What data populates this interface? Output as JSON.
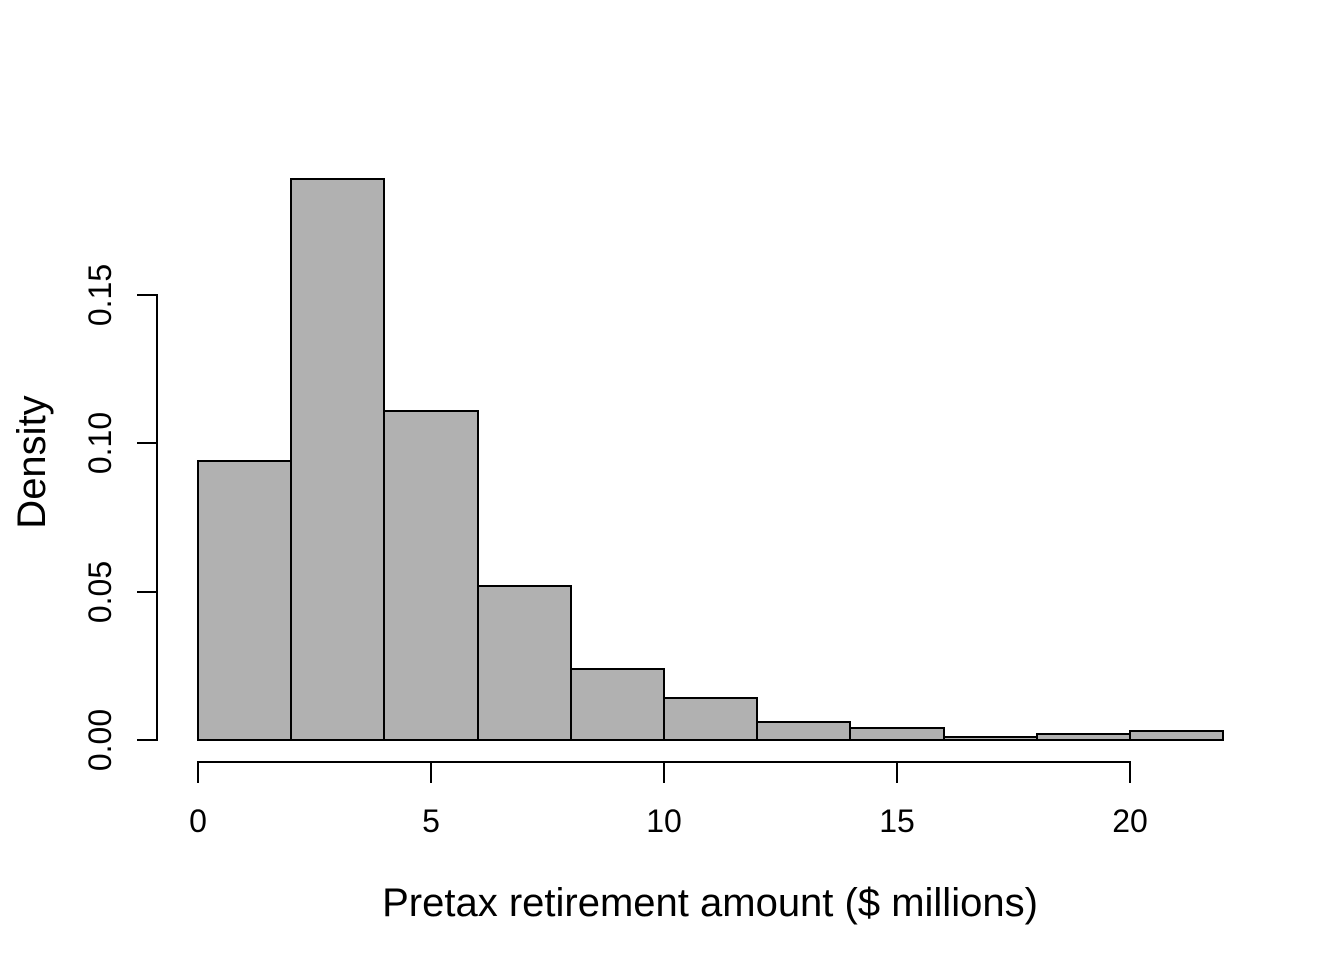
{
  "chart_data": {
    "type": "bar",
    "subtype": "histogram",
    "title": "",
    "xlabel": "Pretax retirement amount ($ millions)",
    "ylabel": "Density",
    "bin_width": 2,
    "bin_edges": [
      0,
      2,
      4,
      6,
      8,
      10,
      12,
      14,
      16,
      18,
      20,
      22
    ],
    "categories": [
      "0-2",
      "2-4",
      "4-6",
      "6-8",
      "8-10",
      "10-12",
      "12-14",
      "14-16",
      "16-18",
      "18-20",
      "20-22"
    ],
    "values": [
      0.094,
      0.189,
      0.111,
      0.052,
      0.024,
      0.014,
      0.006,
      0.004,
      0.001,
      0.002,
      0.003
    ],
    "x_ticks": [
      {
        "value": 0,
        "label": "0"
      },
      {
        "value": 5,
        "label": "5"
      },
      {
        "value": 10,
        "label": "10"
      },
      {
        "value": 15,
        "label": "15"
      },
      {
        "value": 20,
        "label": "20"
      }
    ],
    "y_ticks": [
      {
        "value": 0.0,
        "label": "0.00"
      },
      {
        "value": 0.05,
        "label": "0.05"
      },
      {
        "value": 0.1,
        "label": "0.10"
      },
      {
        "value": 0.15,
        "label": "0.15"
      }
    ],
    "xlim": [
      0,
      22
    ],
    "ylim": [
      0,
      0.19
    ],
    "grid": "off",
    "legend": "none",
    "bar_fill_color": "#b1b1b1",
    "bar_border_color": "#000000",
    "axis_color": "#000000",
    "background_color": "#ffffff"
  }
}
